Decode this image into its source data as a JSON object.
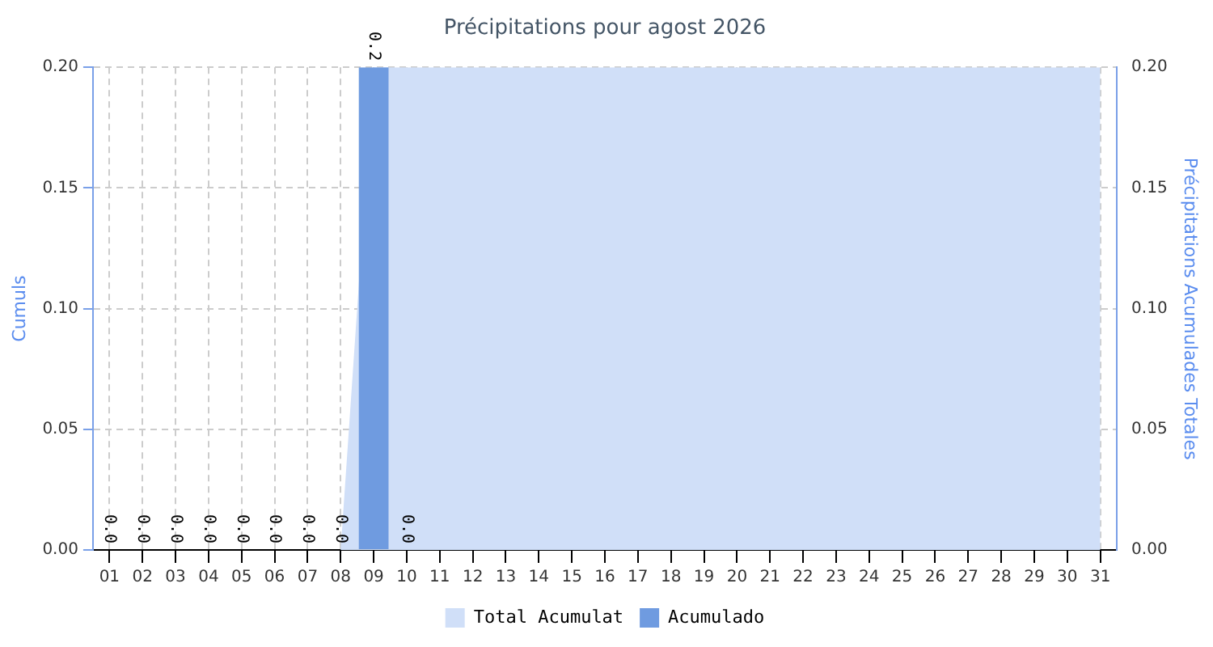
{
  "chart_data": {
    "type": "bar",
    "title": "Précipitations pour agost 2026",
    "ylabel": "Cumuls",
    "y2label": "Précipitations Acumulades Totales",
    "categories": [
      "01",
      "02",
      "03",
      "04",
      "05",
      "06",
      "07",
      "08",
      "09",
      "10",
      "11",
      "12",
      "13",
      "14",
      "15",
      "16",
      "17",
      "18",
      "19",
      "20",
      "21",
      "22",
      "23",
      "24",
      "25",
      "26",
      "27",
      "28",
      "29",
      "30",
      "31"
    ],
    "series": [
      {
        "name": "Total Acumulat",
        "type": "area",
        "axis": "y2",
        "color": "#d0dff8",
        "values": [
          0,
          0,
          0,
          0,
          0,
          0,
          0,
          0,
          0.2,
          0.2,
          0.2,
          0.2,
          0.2,
          0.2,
          0.2,
          0.2,
          0.2,
          0.2,
          0.2,
          0.2,
          0.2,
          0.2,
          0.2,
          0.2,
          0.2,
          0.2,
          0.2,
          0.2,
          0.2,
          0.2,
          0.2
        ]
      },
      {
        "name": "Acumulado",
        "color": "#6f9be0",
        "values": [
          0,
          0,
          0,
          0,
          0,
          0,
          0,
          0,
          0.2,
          0,
          null,
          null,
          null,
          null,
          null,
          null,
          null,
          null,
          null,
          null,
          null,
          null,
          null,
          null,
          null,
          null,
          null,
          null,
          null,
          null,
          null
        ],
        "value_labels": [
          "0.0",
          "0.0",
          "0.0",
          "0.0",
          "0.0",
          "0.0",
          "0.0",
          "0.0",
          "0.2",
          "0.0",
          null,
          null,
          null,
          null,
          null,
          null,
          null,
          null,
          null,
          null,
          null,
          null,
          null,
          null,
          null,
          null,
          null,
          null,
          null,
          null,
          null
        ]
      }
    ],
    "ylim": [
      0,
      0.2
    ],
    "yticks": [
      {
        "value": 0,
        "label": "0.00"
      },
      {
        "value": 0.05,
        "label": "0.05"
      },
      {
        "value": 0.1,
        "label": "0.10"
      },
      {
        "value": 0.15,
        "label": "0.15"
      },
      {
        "value": 0.2,
        "label": "0.20"
      }
    ],
    "y2lim": [
      0,
      0.2
    ],
    "y2ticks": [
      {
        "value": 0,
        "label": "0.00"
      },
      {
        "value": 0.05,
        "label": "0.05"
      },
      {
        "value": 0.1,
        "label": "0.10"
      },
      {
        "value": 0.15,
        "label": "0.15"
      },
      {
        "value": 0.2,
        "label": "0.20"
      }
    ],
    "grid": true,
    "legend": "bottom"
  }
}
